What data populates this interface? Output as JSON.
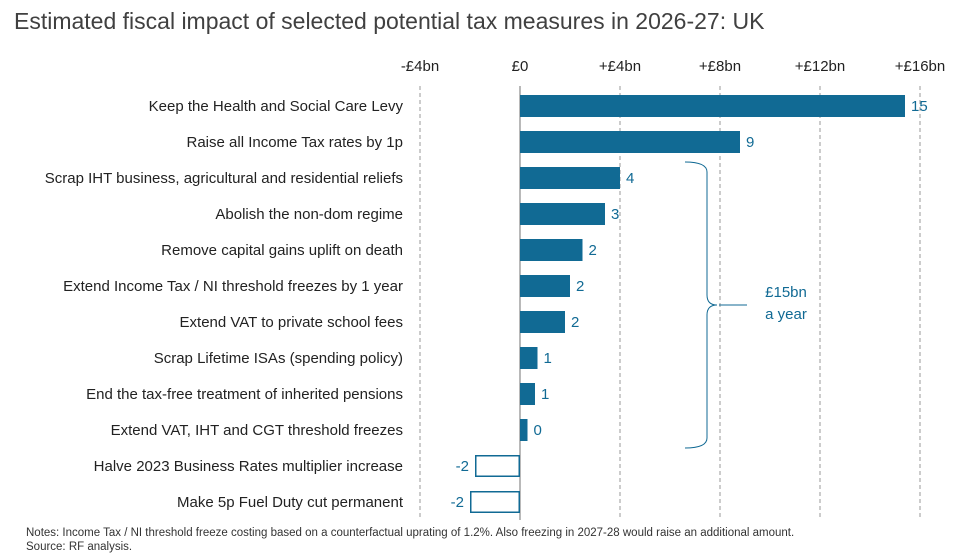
{
  "title": "Estimated fiscal impact of selected potential tax measures in 2026-27: UK",
  "chart_data": {
    "type": "bar",
    "orientation": "horizontal",
    "title": "Estimated fiscal impact of selected potential tax measures in 2026-27: UK",
    "xlabel": "",
    "ylabel": "",
    "xlim": [
      -4,
      16
    ],
    "x_ticks": [
      -4,
      0,
      4,
      8,
      12,
      16
    ],
    "x_tick_labels": [
      "-£4bn",
      "£0",
      "+£4bn",
      "+£8bn",
      "+£12bn",
      "+£16bn"
    ],
    "x_axis_position": "top",
    "grid": "vertical dashed",
    "categories": [
      "Keep the Health and Social Care Levy",
      "Raise all Income Tax rates by 1p",
      "Scrap IHT business, agricultural and residential reliefs",
      "Abolish the non-dom regime",
      "Remove capital gains uplift on death",
      "Extend Income Tax / NI threshold freezes by 1 year",
      "Extend VAT to private school fees",
      "Scrap Lifetime ISAs (spending policy)",
      "End the tax-free treatment of inherited pensions",
      "Extend VAT, IHT and CGT threshold freezes",
      "Halve 2023 Business Rates multiplier increase",
      "Make 5p Fuel Duty cut permanent"
    ],
    "values": [
      15.4,
      8.8,
      4.0,
      3.4,
      2.5,
      2.0,
      1.8,
      0.7,
      0.6,
      0.3,
      -1.8,
      -2.0
    ],
    "data_labels": [
      "15",
      "9",
      "4",
      "3",
      "2",
      "2",
      "2",
      "1",
      "1",
      "0",
      "-2",
      "-2"
    ],
    "colors": {
      "positive_fill": "#116a94",
      "negative_fill": "#ffffff",
      "negative_stroke": "#116a94",
      "label": "#116a94",
      "grid": "#9a9a9a"
    },
    "annotation": {
      "text_lines": [
        "£15bn",
        "a year"
      ],
      "bracket_from_category": 2,
      "bracket_to_category": 9
    }
  },
  "notes": [
    "Notes: Income Tax / NI threshold freeze costing based on a counterfactual uprating of 1.2%. Also freezing in 2027-28 would raise an additional amount.",
    "Source: RF analysis."
  ]
}
